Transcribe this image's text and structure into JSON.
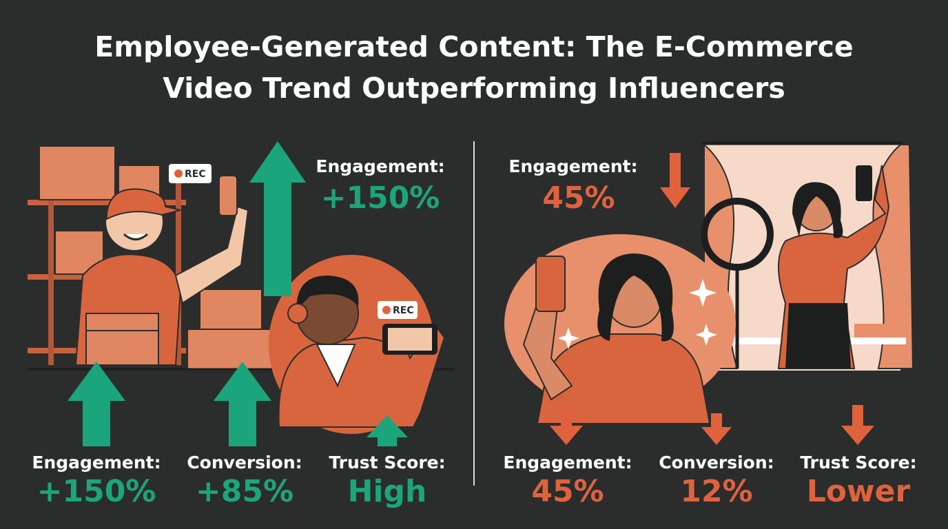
{
  "title": [
    "Employee-Generated Content: The E-Commerce",
    "Video Trend Outperforming Influencers"
  ],
  "employee": {
    "headline": {
      "label": "Engagement:",
      "value": "+150%"
    },
    "rec_labels": [
      "REC",
      "REC"
    ],
    "stats": [
      {
        "label": "Engagement:",
        "value": "+150%"
      },
      {
        "label": "Conversion:",
        "value": "+85%"
      },
      {
        "label": "Trust Score:",
        "value": "High"
      }
    ]
  },
  "influencer": {
    "headline": {
      "label": "Engagement:",
      "value": "45%"
    },
    "stats": [
      {
        "label": "Engagement:",
        "value": "45%"
      },
      {
        "label": "Conversion:",
        "value": "12%"
      },
      {
        "label": "Trust Score:",
        "value": "Lower"
      }
    ]
  }
}
